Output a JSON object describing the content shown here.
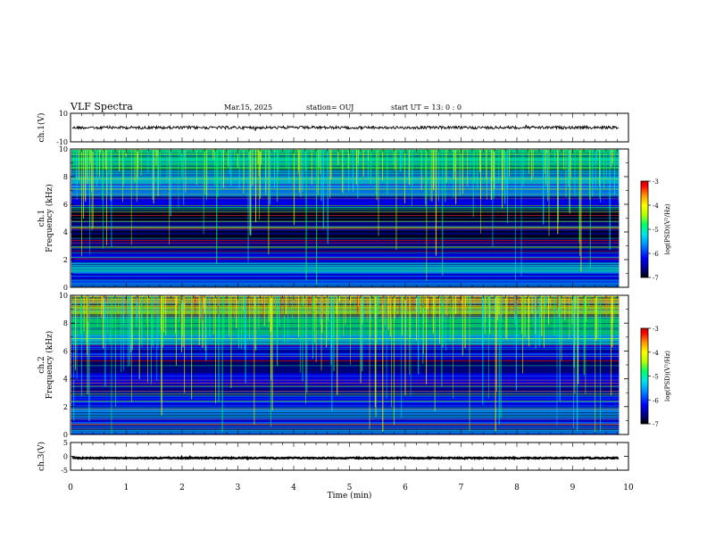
{
  "header": {
    "title": "VLF Spectra",
    "date": "Mar.15, 2025",
    "station": "station= OUJ",
    "start": "start  UT =   13: 0  : 0"
  },
  "chart_data": [
    {
      "type": "line",
      "name": "ch1-waveform",
      "ylabel": "ch.1(V)",
      "ylim": [
        -10,
        10
      ],
      "yticks": [
        "10",
        "-10"
      ],
      "mean_value": 0,
      "amplitude": 1
    },
    {
      "type": "heatmap",
      "name": "ch1-spectrogram",
      "ylabel_line1": "ch.1",
      "ylabel_line2": "Frequency (kHz)",
      "ylim": [
        0,
        10
      ],
      "yticks": [
        "0",
        "2",
        "4",
        "6",
        "8",
        "10"
      ],
      "colorbar": {
        "label": "log(PSD)(V²/Hz)",
        "range": [
          -7,
          -3
        ],
        "ticks": [
          "-3",
          "-4",
          "-5",
          "-6",
          "-7"
        ]
      }
    },
    {
      "type": "heatmap",
      "name": "ch2-spectrogram",
      "ylabel_line1": "ch.2",
      "ylabel_line2": "Frequency (kHz)",
      "ylim": [
        0,
        10
      ],
      "yticks": [
        "0",
        "2",
        "4",
        "6",
        "8",
        "10"
      ],
      "colorbar": {
        "label": "log(PSD)(V²/Hz)",
        "range": [
          -7,
          -3
        ],
        "ticks": [
          "-3",
          "-4",
          "-5",
          "-6",
          "-7"
        ]
      }
    },
    {
      "type": "line",
      "name": "ch3-waveform",
      "ylabel": "ch.3(V)",
      "ylim": [
        -5,
        5
      ],
      "yticks": [
        "5",
        "0",
        "-5"
      ],
      "mean_value": -0.6,
      "amplitude": 0.2
    }
  ],
  "xaxis": {
    "label": "Time (min)",
    "xlim": [
      0,
      10
    ],
    "data_end": 9.83,
    "ticks": [
      "0",
      "1",
      "2",
      "3",
      "4",
      "5",
      "6",
      "7",
      "8",
      "9",
      "10"
    ]
  },
  "colors": {
    "colormap": [
      "#000000",
      "#00007a",
      "#0000ff",
      "#0096ff",
      "#00e6e6",
      "#00ff64",
      "#b4ff00",
      "#ffff00",
      "#ff9600",
      "#ff0000",
      "#c80000"
    ]
  }
}
